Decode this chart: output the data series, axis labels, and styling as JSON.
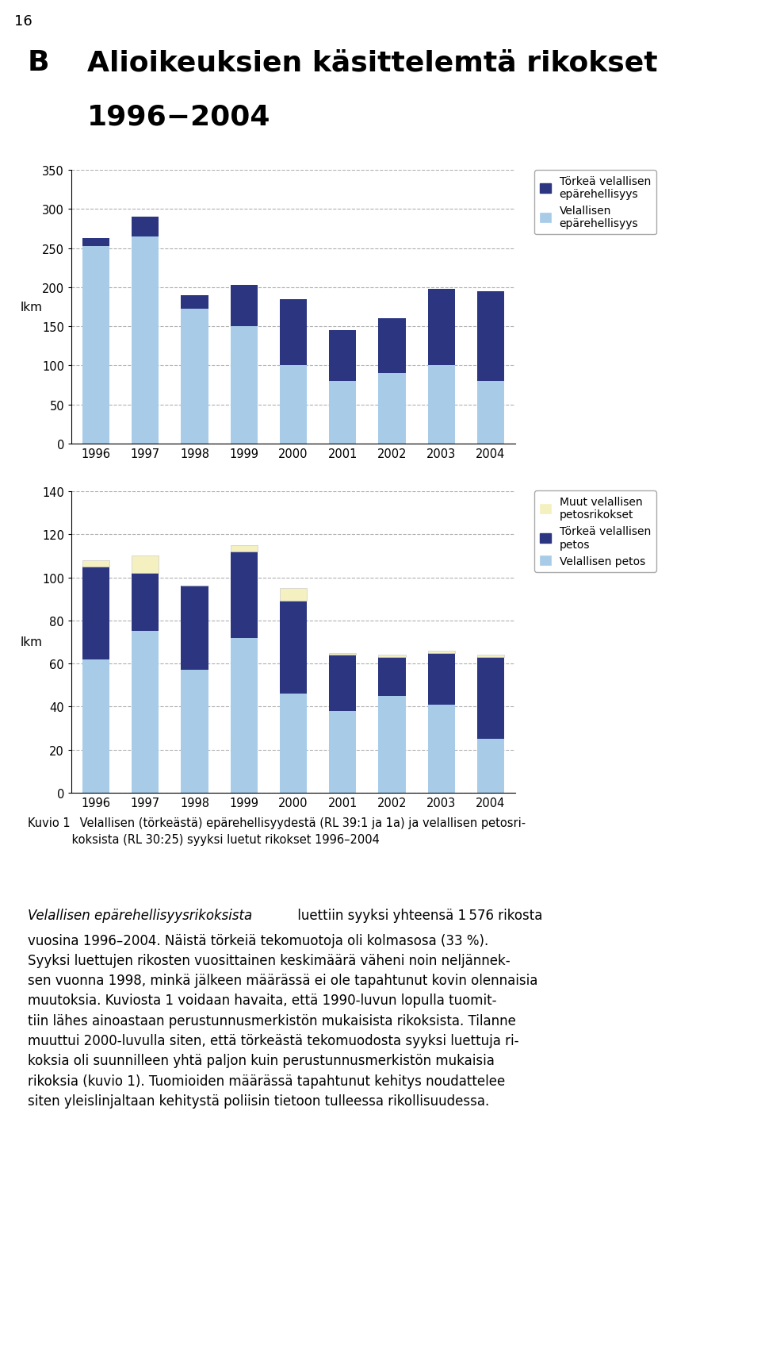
{
  "years": [
    1996,
    1997,
    1998,
    1999,
    2000,
    2001,
    2002,
    2003,
    2004
  ],
  "chart1": {
    "light": [
      253,
      265,
      172,
      150,
      100,
      80,
      90,
      100,
      80
    ],
    "dark": [
      10,
      25,
      18,
      53,
      85,
      65,
      70,
      98,
      115
    ],
    "ylabel": "lkm",
    "ylim": [
      0,
      350
    ],
    "yticks": [
      0,
      50,
      100,
      150,
      200,
      250,
      300,
      350
    ],
    "legend_dark": "Törkeä velallisen\nepärehellisyys",
    "legend_light": "Velallisen\nepärehellisyys"
  },
  "chart2": {
    "light": [
      62,
      75,
      57,
      72,
      46,
      38,
      45,
      41,
      25
    ],
    "dark": [
      43,
      27,
      39,
      40,
      43,
      26,
      18,
      24,
      38
    ],
    "muut": [
      3,
      8,
      0,
      3,
      6,
      1,
      1,
      1,
      1
    ],
    "ylabel": "lkm",
    "ylim": [
      0,
      140
    ],
    "yticks": [
      0,
      20,
      40,
      60,
      80,
      100,
      120,
      140
    ],
    "legend_muut": "Muut velallisen\npetosrikokset",
    "legend_dark": "Törkeä velallisen\npetos",
    "legend_light": "Velallisen petos"
  },
  "page_number": "16",
  "color_light": "#a8cce8",
  "color_dark": "#2b3580",
  "color_muut": "#f5f0c0",
  "bar_width": 0.55
}
